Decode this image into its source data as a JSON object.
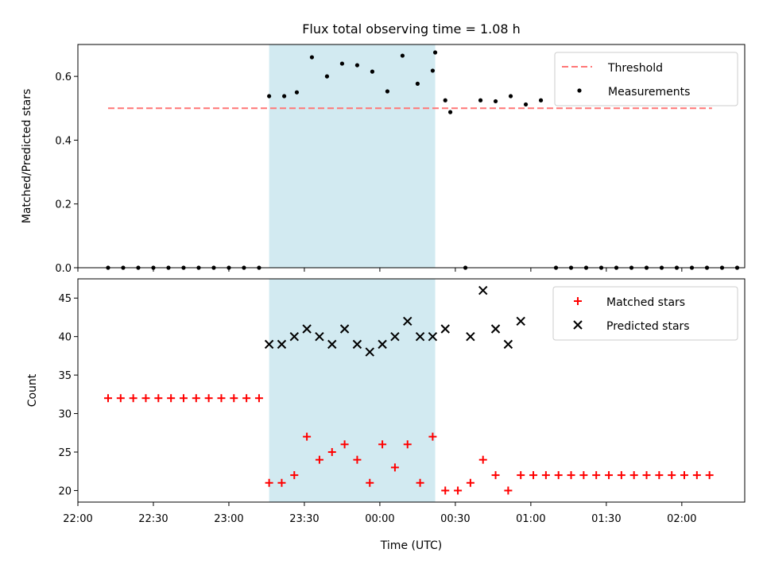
{
  "chart_data": [
    {
      "type": "scatter",
      "title": "Flux total observing time = 1.08 h",
      "xlabel": "",
      "ylabel": "Matched/Predicted stars",
      "ylim": [
        0,
        0.7
      ],
      "yticks": [
        "0.0",
        "0.2",
        "0.4",
        "0.6"
      ],
      "xlim": [
        "22:00",
        "02:25"
      ],
      "highlight_span": {
        "start": "23:16",
        "end": "00:22",
        "color": "#add8e6"
      },
      "threshold": {
        "name": "Threshold",
        "value": 0.5,
        "x_start": "22:12",
        "x_end": "02:12",
        "color": "#ff7777"
      },
      "legend": {
        "position": "top-right",
        "entries": [
          "Threshold",
          "Measurements"
        ]
      },
      "series": [
        {
          "name": "Measurements",
          "color": "#000000",
          "points": [
            [
              "22:12",
              0
            ],
            [
              "22:18",
              0
            ],
            [
              "22:24",
              0
            ],
            [
              "22:30",
              0
            ],
            [
              "22:36",
              0
            ],
            [
              "22:42",
              0
            ],
            [
              "22:48",
              0
            ],
            [
              "22:54",
              0
            ],
            [
              "23:00",
              0
            ],
            [
              "23:06",
              0
            ],
            [
              "23:12",
              0
            ],
            [
              "23:16",
              0.538
            ],
            [
              "23:22",
              0.538
            ],
            [
              "23:27",
              0.55
            ],
            [
              "23:33",
              0.66
            ],
            [
              "23:39",
              0.6
            ],
            [
              "23:45",
              0.64
            ],
            [
              "23:51",
              0.635
            ],
            [
              "23:57",
              0.615
            ],
            [
              "00:03",
              0.553
            ],
            [
              "00:09",
              0.665
            ],
            [
              "00:15",
              0.577
            ],
            [
              "00:21",
              0.618
            ],
            [
              "00:26",
              0.525
            ],
            [
              "00:22",
              0.675
            ],
            [
              "00:28",
              0.488
            ],
            [
              "00:34",
              0
            ],
            [
              "00:40",
              0.525
            ],
            [
              "00:46",
              0.522
            ],
            [
              "00:52",
              0.538
            ],
            [
              "00:58",
              0.512
            ],
            [
              "01:04",
              0.525
            ],
            [
              "01:10",
              0
            ],
            [
              "01:16",
              0
            ],
            [
              "01:22",
              0
            ],
            [
              "01:28",
              0
            ],
            [
              "01:34",
              0
            ],
            [
              "01:40",
              0
            ],
            [
              "01:46",
              0
            ],
            [
              "01:52",
              0
            ],
            [
              "01:58",
              0
            ],
            [
              "02:04",
              0
            ],
            [
              "02:10",
              0
            ],
            [
              "02:16",
              0
            ],
            [
              "02:22",
              0
            ]
          ]
        }
      ]
    },
    {
      "type": "scatter",
      "title": "",
      "xlabel": "Time (UTC)",
      "ylabel": "Count",
      "ylim": [
        18.5,
        47.5
      ],
      "yticks": [
        "20",
        "25",
        "30",
        "35",
        "40",
        "45"
      ],
      "xticks": [
        "22:00",
        "22:30",
        "23:00",
        "23:30",
        "00:00",
        "00:30",
        "01:00",
        "01:30",
        "02:00"
      ],
      "highlight_span": {
        "start": "23:16",
        "end": "00:22",
        "color": "#add8e6"
      },
      "legend": {
        "position": "top-right",
        "entries": [
          "Matched stars",
          "Predicted stars"
        ]
      },
      "series": [
        {
          "name": "Matched stars",
          "marker": "plus",
          "color": "#ff0000",
          "points": [
            [
              "22:12",
              32
            ],
            [
              "22:17",
              32
            ],
            [
              "22:22",
              32
            ],
            [
              "22:27",
              32
            ],
            [
              "22:32",
              32
            ],
            [
              "22:37",
              32
            ],
            [
              "22:42",
              32
            ],
            [
              "22:47",
              32
            ],
            [
              "22:52",
              32
            ],
            [
              "22:57",
              32
            ],
            [
              "23:02",
              32
            ],
            [
              "23:07",
              32
            ],
            [
              "23:12",
              32
            ],
            [
              "23:16",
              21
            ],
            [
              "23:21",
              21
            ],
            [
              "23:26",
              22
            ],
            [
              "23:31",
              27
            ],
            [
              "23:36",
              24
            ],
            [
              "23:41",
              25
            ],
            [
              "23:46",
              26
            ],
            [
              "23:51",
              24
            ],
            [
              "23:56",
              21
            ],
            [
              "00:01",
              26
            ],
            [
              "00:06",
              23
            ],
            [
              "00:11",
              26
            ],
            [
              "00:16",
              21
            ],
            [
              "00:21",
              27
            ],
            [
              "00:26",
              20
            ],
            [
              "00:31",
              20
            ],
            [
              "00:36",
              21
            ],
            [
              "00:41",
              24
            ],
            [
              "00:46",
              22
            ],
            [
              "00:51",
              20
            ],
            [
              "00:56",
              22
            ],
            [
              "01:01",
              22
            ],
            [
              "01:06",
              22
            ],
            [
              "01:11",
              22
            ],
            [
              "01:16",
              22
            ],
            [
              "01:21",
              22
            ],
            [
              "01:26",
              22
            ],
            [
              "01:31",
              22
            ],
            [
              "01:36",
              22
            ],
            [
              "01:41",
              22
            ],
            [
              "01:46",
              22
            ],
            [
              "01:51",
              22
            ],
            [
              "01:56",
              22
            ],
            [
              "02:01",
              22
            ],
            [
              "02:06",
              22
            ],
            [
              "02:11",
              22
            ]
          ]
        },
        {
          "name": "Predicted stars",
          "marker": "x",
          "color": "#000000",
          "points": [
            [
              "23:16",
              39
            ],
            [
              "23:21",
              39
            ],
            [
              "23:26",
              40
            ],
            [
              "23:31",
              41
            ],
            [
              "23:36",
              40
            ],
            [
              "23:41",
              39
            ],
            [
              "23:46",
              41
            ],
            [
              "23:51",
              39
            ],
            [
              "23:56",
              38
            ],
            [
              "00:01",
              39
            ],
            [
              "00:06",
              40
            ],
            [
              "00:11",
              42
            ],
            [
              "00:16",
              40
            ],
            [
              "00:21",
              40
            ],
            [
              "00:26",
              41
            ],
            [
              "00:36",
              40
            ],
            [
              "00:41",
              46
            ],
            [
              "00:46",
              41
            ],
            [
              "00:51",
              39
            ],
            [
              "00:56",
              42
            ]
          ]
        }
      ]
    }
  ]
}
